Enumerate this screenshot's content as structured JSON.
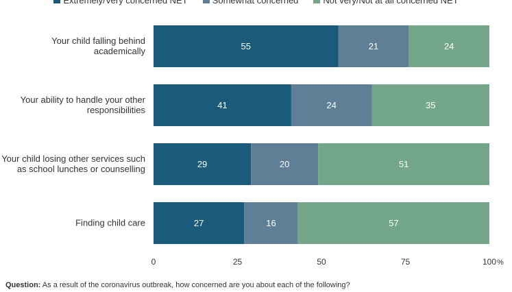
{
  "chart_data": {
    "type": "bar",
    "orientation": "horizontal",
    "stacked": true,
    "categories": [
      [
        "Your child falling behind",
        "academically"
      ],
      [
        "Your ability to handle your other",
        "responsibilities"
      ],
      [
        "Your child losing other services such",
        "as school lunches or counselling"
      ],
      [
        "Finding child care"
      ]
    ],
    "series": [
      {
        "name": "Extremely/Very concerned NET",
        "color": "#1a5a7a",
        "values": [
          55,
          41,
          29,
          27
        ]
      },
      {
        "name": "Somewhat concerned",
        "color": "#5e7f96",
        "values": [
          21,
          24,
          20,
          16
        ]
      },
      {
        "name": "Not very/Not at all concerned NET",
        "color": "#74a68a",
        "values": [
          24,
          35,
          51,
          57
        ]
      }
    ],
    "xlim": [
      0,
      100
    ],
    "xticks": [
      0,
      25,
      50,
      75,
      100
    ],
    "x_unit": "%",
    "legend_position": "top",
    "grid": false,
    "data_label_color": "#ffffff"
  },
  "footnote": {
    "label": "Question:",
    "text": "As a result of the coronavirus outbreak, how concerned are you about each of the following?"
  }
}
